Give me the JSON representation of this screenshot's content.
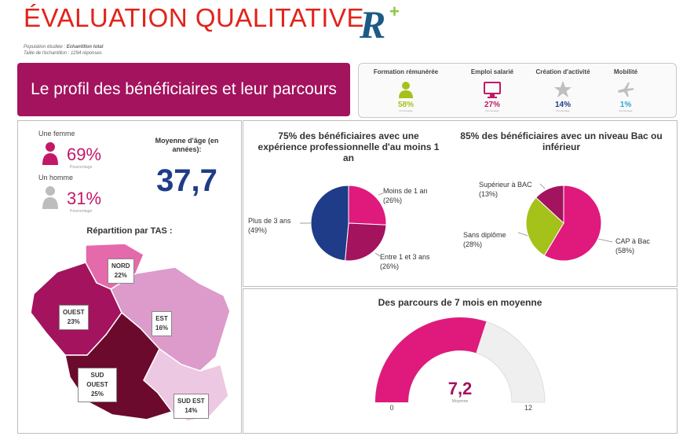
{
  "header": {
    "title": "ÉVALUATION QUALITATIVE",
    "logo_text": "R+",
    "population_label": "Population étudiée : ",
    "population_value": "Echantillon total",
    "sample_label": "Taille de l'échantillon : ",
    "sample_value": "1294 réponses"
  },
  "banner": {
    "title": "Le profil des bénéficiaires et leur parcours"
  },
  "kpis": [
    {
      "label": "Formation rémunérée",
      "value": "58%",
      "sub": "Pourcentage",
      "icon": "person-icon",
      "color": "#a4c21a"
    },
    {
      "label": "Emploi salarié",
      "value": "27%",
      "sub": "Pourcentage",
      "icon": "monitor-icon",
      "color": "#c21868"
    },
    {
      "label": "Création d'activité",
      "value": "14%",
      "sub": "Pourcentage",
      "icon": "star-icon",
      "color": "#1f3c88"
    },
    {
      "label": "Mobilité",
      "value": "1%",
      "sub": "Pourcentage",
      "icon": "plane-icon",
      "color": "#27a7d8"
    }
  ],
  "gender": {
    "female_label": "Une femme",
    "female_value": "69%",
    "female_sub": "Pourcentage",
    "male_label": "Un homme",
    "male_value": "31%",
    "male_sub": "Pourcentage"
  },
  "age": {
    "label": "Moyenne d'âge (en années):",
    "value": "37,7"
  },
  "map": {
    "title": "Répartition par TAS :",
    "regions": [
      {
        "name": "NORD",
        "value": "22%",
        "color": "#e46aab"
      },
      {
        "name": "OUEST",
        "value": "23%",
        "color": "#a3135e"
      },
      {
        "name": "EST",
        "value": "16%",
        "color": "#dc9bcb"
      },
      {
        "name": "SUD OUEST",
        "value": "25%",
        "color": "#6b0a2c"
      },
      {
        "name": "SUD EST",
        "value": "14%",
        "color": "#ecc8e2"
      }
    ]
  },
  "chart_data": [
    {
      "type": "pie",
      "title": "75% des bénéficiaires avec une expérience professionnelle d'au moins 1 an",
      "categories": [
        "Moins de 1 an",
        "Entre 1 et 3 ans",
        "Plus de 3 ans"
      ],
      "values": [
        26,
        26,
        49
      ],
      "labels": [
        "(26%)",
        "(26%)",
        "(49%)"
      ],
      "colors": [
        "#e0197d",
        "#a3135e",
        "#1f3c88"
      ]
    },
    {
      "type": "pie",
      "title": "85% des bénéficiaires avec un niveau Bac ou inférieur",
      "categories": [
        "CAP à Bac",
        "Sans diplôme",
        "Supérieur à BAC"
      ],
      "values": [
        58,
        28,
        13
      ],
      "labels": [
        "(58%)",
        "(28%)",
        "(13%)"
      ],
      "colors": [
        "#e0197d",
        "#a4c21a",
        "#a3135e"
      ]
    },
    {
      "type": "gauge",
      "title": "Des parcours de 7 mois en moyenne",
      "value": 7.2,
      "value_label": "7,2",
      "sub_label": "Moyenne",
      "min": 0,
      "max": 12,
      "min_label": "0",
      "max_label": "12",
      "color": "#e0197d",
      "track_color": "#efefef"
    }
  ]
}
